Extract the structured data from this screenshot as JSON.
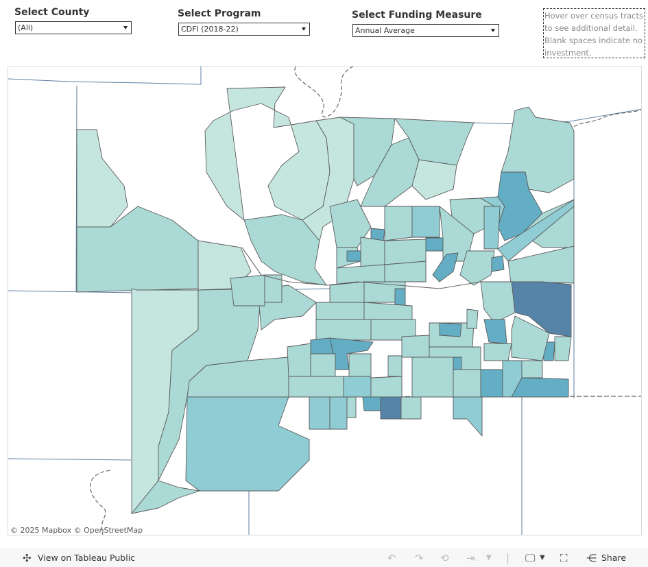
{
  "filters": {
    "county": {
      "title": "Select County",
      "value": "(All)"
    },
    "program": {
      "title": "Select Program",
      "value": "CDFI (2018-22)"
    },
    "measure": {
      "title": "Select Funding Measure",
      "value": "Annual Average"
    }
  },
  "note": "Hover over census tracts to see additional detail. Blank spaces indicate no investment.",
  "map": {
    "attribution": "© 2025 Mapbox  © OpenStreetMap",
    "colors": {
      "lightest": "#c4e6df",
      "light": "#aad9d6",
      "mid": "#90ccd3",
      "dark": "#63aec4",
      "darkest": "#5684a8",
      "border": "#5a5a5a",
      "county_line": "#5b7ea0"
    }
  },
  "toolbar": {
    "view_label": "View on Tableau Public",
    "share_label": "Share",
    "icons": [
      "tableau-icon",
      "undo-icon",
      "redo-icon",
      "revert-icon",
      "refresh-icon",
      "download-icon",
      "fullscreen-icon",
      "share-icon"
    ]
  }
}
